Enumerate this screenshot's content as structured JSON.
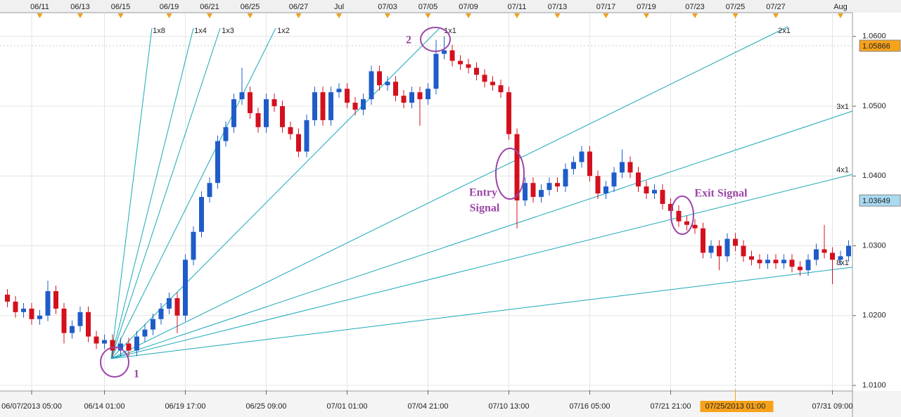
{
  "chart_data": {
    "type": "candlestick",
    "up_color": "#1f5cc8",
    "down_color": "#d4101e",
    "grid": true,
    "ylim": [
      1.0093,
      1.0634
    ],
    "yticks": [
      {
        "value": 1.01,
        "label": "1.0100"
      },
      {
        "value": 1.02,
        "label": "1.0200"
      },
      {
        "value": 1.03,
        "label": "1.0300"
      },
      {
        "value": 1.04,
        "label": "1.0400"
      },
      {
        "value": 1.05,
        "label": "1.0500"
      },
      {
        "value": 1.06,
        "label": "1.0600"
      }
    ],
    "price_markers": [
      {
        "value": 1.05866,
        "color": "#f7a21b"
      },
      {
        "value": 1.03649,
        "color": "#a9daf2"
      }
    ],
    "highlighted_category": "07/25/2013 01:00",
    "categories": [
      null,
      null,
      null,
      "06/07/2013 05:00",
      null,
      null,
      null,
      null,
      null,
      null,
      null,
      null,
      "06/14 01:00",
      null,
      null,
      null,
      null,
      null,
      null,
      null,
      null,
      null,
      "06/19 17:00",
      null,
      null,
      null,
      null,
      null,
      null,
      null,
      null,
      null,
      "06/25 09:00",
      null,
      null,
      null,
      null,
      null,
      null,
      null,
      null,
      null,
      "07/01 01:00",
      null,
      null,
      null,
      null,
      null,
      null,
      null,
      null,
      null,
      "07/04 21:00",
      null,
      null,
      null,
      null,
      null,
      null,
      null,
      null,
      null,
      "07/10 13:00",
      null,
      null,
      null,
      null,
      null,
      null,
      null,
      null,
      null,
      "07/16 05:00",
      null,
      null,
      null,
      null,
      null,
      null,
      null,
      null,
      null,
      "07/21 21:00",
      null,
      null,
      null,
      null,
      null,
      null,
      null,
      "07/25/2013 01:00",
      null,
      null,
      null,
      null,
      null,
      null,
      null,
      null,
      null,
      null,
      null,
      "07/31 09:00",
      null,
      null
    ],
    "top_categories": [
      null,
      null,
      null,
      null,
      "06/11",
      null,
      null,
      null,
      null,
      "06/13",
      null,
      null,
      null,
      null,
      "06/15",
      null,
      null,
      null,
      null,
      null,
      "06/19",
      null,
      null,
      null,
      null,
      "06/21",
      null,
      null,
      null,
      null,
      "06/25",
      null,
      null,
      null,
      null,
      null,
      "06/27",
      null,
      null,
      null,
      null,
      "Jul",
      null,
      null,
      null,
      null,
      null,
      "07/03",
      null,
      null,
      null,
      null,
      "07/05",
      null,
      null,
      null,
      null,
      "07/09",
      null,
      null,
      null,
      null,
      null,
      "07/11",
      null,
      null,
      null,
      null,
      "07/13",
      null,
      null,
      null,
      null,
      null,
      "07/17",
      null,
      null,
      null,
      null,
      "07/19",
      null,
      null,
      null,
      null,
      null,
      "07/23",
      null,
      null,
      null,
      null,
      "07/25",
      null,
      null,
      null,
      null,
      "07/27",
      null,
      null,
      null,
      null,
      null,
      null,
      null,
      "Aug",
      null
    ],
    "open": [
      1.023,
      1.022,
      1.0205,
      1.021,
      1.0195,
      1.02,
      1.0235,
      1.021,
      1.0175,
      1.0185,
      1.0205,
      1.017,
      1.016,
      1.0165,
      1.015,
      1.016,
      1.015,
      1.017,
      1.018,
      1.0195,
      1.021,
      1.0225,
      1.02,
      1.028,
      1.032,
      1.037,
      1.039,
      1.045,
      1.047,
      1.051,
      1.052,
      1.049,
      1.047,
      1.051,
      1.05,
      1.047,
      1.046,
      1.0435,
      1.048,
      1.052,
      1.048,
      1.052,
      1.0525,
      1.0505,
      1.0495,
      1.051,
      1.055,
      1.053,
      1.0535,
      1.0515,
      1.0505,
      1.052,
      1.051,
      1.0525,
      1.0575,
      1.058,
      1.0565,
      1.056,
      1.0555,
      1.0545,
      1.0535,
      1.053,
      1.052,
      1.046,
      1.0365,
      1.039,
      1.037,
      1.038,
      1.039,
      1.0385,
      1.041,
      1.042,
      1.0435,
      1.04,
      1.0375,
      1.0385,
      1.0405,
      1.042,
      1.0405,
      1.0385,
      1.0375,
      1.038,
      1.036,
      1.035,
      1.0335,
      1.033,
      1.0325,
      1.029,
      1.03,
      1.0285,
      1.031,
      1.03,
      1.0285,
      1.028,
      1.0275,
      1.028,
      1.0275,
      1.028,
      1.027,
      1.0265,
      1.028,
      1.0295,
      1.029,
      1.028,
      1.0285
    ],
    "high": [
      1.0238,
      1.0228,
      1.0218,
      1.0218,
      1.0208,
      1.025,
      1.0243,
      1.0218,
      1.0193,
      1.0213,
      1.0213,
      1.0178,
      1.0173,
      1.0173,
      1.0168,
      1.0168,
      1.0178,
      1.0188,
      1.0203,
      1.0218,
      1.0233,
      1.0233,
      1.0288,
      1.0328,
      1.0378,
      1.0398,
      1.0458,
      1.0478,
      1.0518,
      1.0555,
      1.0528,
      1.0498,
      1.0518,
      1.0518,
      1.0508,
      1.0478,
      1.0468,
      1.0488,
      1.0528,
      1.0528,
      1.0528,
      1.0533,
      1.0533,
      1.0513,
      1.0518,
      1.0558,
      1.0558,
      1.0543,
      1.0543,
      1.0523,
      1.0528,
      1.0528,
      1.0533,
      1.0595,
      1.06,
      1.0588,
      1.0573,
      1.0568,
      1.0563,
      1.0553,
      1.0543,
      1.0538,
      1.0528,
      1.0468,
      1.0398,
      1.0398,
      1.0388,
      1.0398,
      1.0398,
      1.0418,
      1.0428,
      1.0443,
      1.0443,
      1.0408,
      1.0393,
      1.0413,
      1.0438,
      1.0428,
      1.0413,
      1.0393,
      1.0388,
      1.0388,
      1.0368,
      1.0358,
      1.0343,
      1.0338,
      1.0333,
      1.0308,
      1.0308,
      1.0318,
      1.0318,
      1.0308,
      1.0293,
      1.0288,
      1.0288,
      1.0288,
      1.0288,
      1.0288,
      1.0278,
      1.0288,
      1.0303,
      1.033,
      1.0298,
      1.0293,
      1.0308
    ],
    "low": [
      1.0212,
      1.0197,
      1.0197,
      1.0187,
      1.0187,
      1.0192,
      1.0202,
      1.016,
      1.0167,
      1.0177,
      1.0162,
      1.0152,
      1.0152,
      1.014,
      1.0142,
      1.0142,
      1.0142,
      1.0162,
      1.0172,
      1.0187,
      1.0202,
      1.0175,
      1.0192,
      1.0272,
      1.0312,
      1.0362,
      1.0382,
      1.0442,
      1.0462,
      1.0502,
      1.0482,
      1.0462,
      1.0462,
      1.0492,
      1.0462,
      1.0452,
      1.0427,
      1.0427,
      1.0472,
      1.0472,
      1.0472,
      1.0512,
      1.0497,
      1.0487,
      1.0487,
      1.0502,
      1.0522,
      1.0522,
      1.0507,
      1.0497,
      1.0497,
      1.0472,
      1.0502,
      1.0517,
      1.0567,
      1.0557,
      1.0552,
      1.0547,
      1.0537,
      1.0527,
      1.0522,
      1.0512,
      1.0452,
      1.0325,
      1.0357,
      1.0362,
      1.0362,
      1.0372,
      1.0377,
      1.0377,
      1.0402,
      1.0412,
      1.0392,
      1.0367,
      1.0367,
      1.0377,
      1.0397,
      1.0397,
      1.0377,
      1.0367,
      1.0367,
      1.0352,
      1.0342,
      1.0327,
      1.0322,
      1.0317,
      1.0282,
      1.0282,
      1.0265,
      1.0277,
      1.0292,
      1.0277,
      1.0272,
      1.0267,
      1.0267,
      1.0267,
      1.0267,
      1.0262,
      1.0257,
      1.0257,
      1.0272,
      1.0282,
      1.0245,
      1.0272,
      1.0277
    ],
    "close": [
      1.022,
      1.0205,
      1.021,
      1.0195,
      1.02,
      1.0235,
      1.021,
      1.0175,
      1.0185,
      1.0205,
      1.017,
      1.016,
      1.0165,
      1.015,
      1.016,
      1.015,
      1.017,
      1.018,
      1.0195,
      1.021,
      1.0225,
      1.02,
      1.028,
      1.032,
      1.037,
      1.039,
      1.045,
      1.047,
      1.051,
      1.052,
      1.049,
      1.047,
      1.051,
      1.05,
      1.047,
      1.046,
      1.0435,
      1.048,
      1.052,
      1.048,
      1.052,
      1.0525,
      1.0505,
      1.0495,
      1.051,
      1.055,
      1.053,
      1.0535,
      1.0515,
      1.0505,
      1.052,
      1.051,
      1.0525,
      1.0575,
      1.058,
      1.0565,
      1.056,
      1.0555,
      1.0545,
      1.0535,
      1.053,
      1.052,
      1.046,
      1.0365,
      1.039,
      1.037,
      1.038,
      1.039,
      1.0385,
      1.041,
      1.042,
      1.0435,
      1.04,
      1.0375,
      1.0385,
      1.0405,
      1.042,
      1.0405,
      1.0385,
      1.0375,
      1.038,
      1.036,
      1.035,
      1.0335,
      1.033,
      1.0325,
      1.029,
      1.03,
      1.0285,
      1.031,
      1.03,
      1.0285,
      1.028,
      1.0275,
      1.028,
      1.0275,
      1.028,
      1.027,
      1.0265,
      1.028,
      1.0295,
      1.029,
      1.028,
      1.0285,
      1.03
    ],
    "fan_labels": [
      "1x8",
      "1x4",
      "1x3",
      "1x2",
      "1x1",
      "2x1",
      "3x1",
      "4x1",
      "8x1"
    ],
    "point_labels": [
      "1",
      "2"
    ],
    "entry_signal": [
      "Entry",
      "Signal"
    ],
    "exit_signal": "Exit Signal"
  }
}
